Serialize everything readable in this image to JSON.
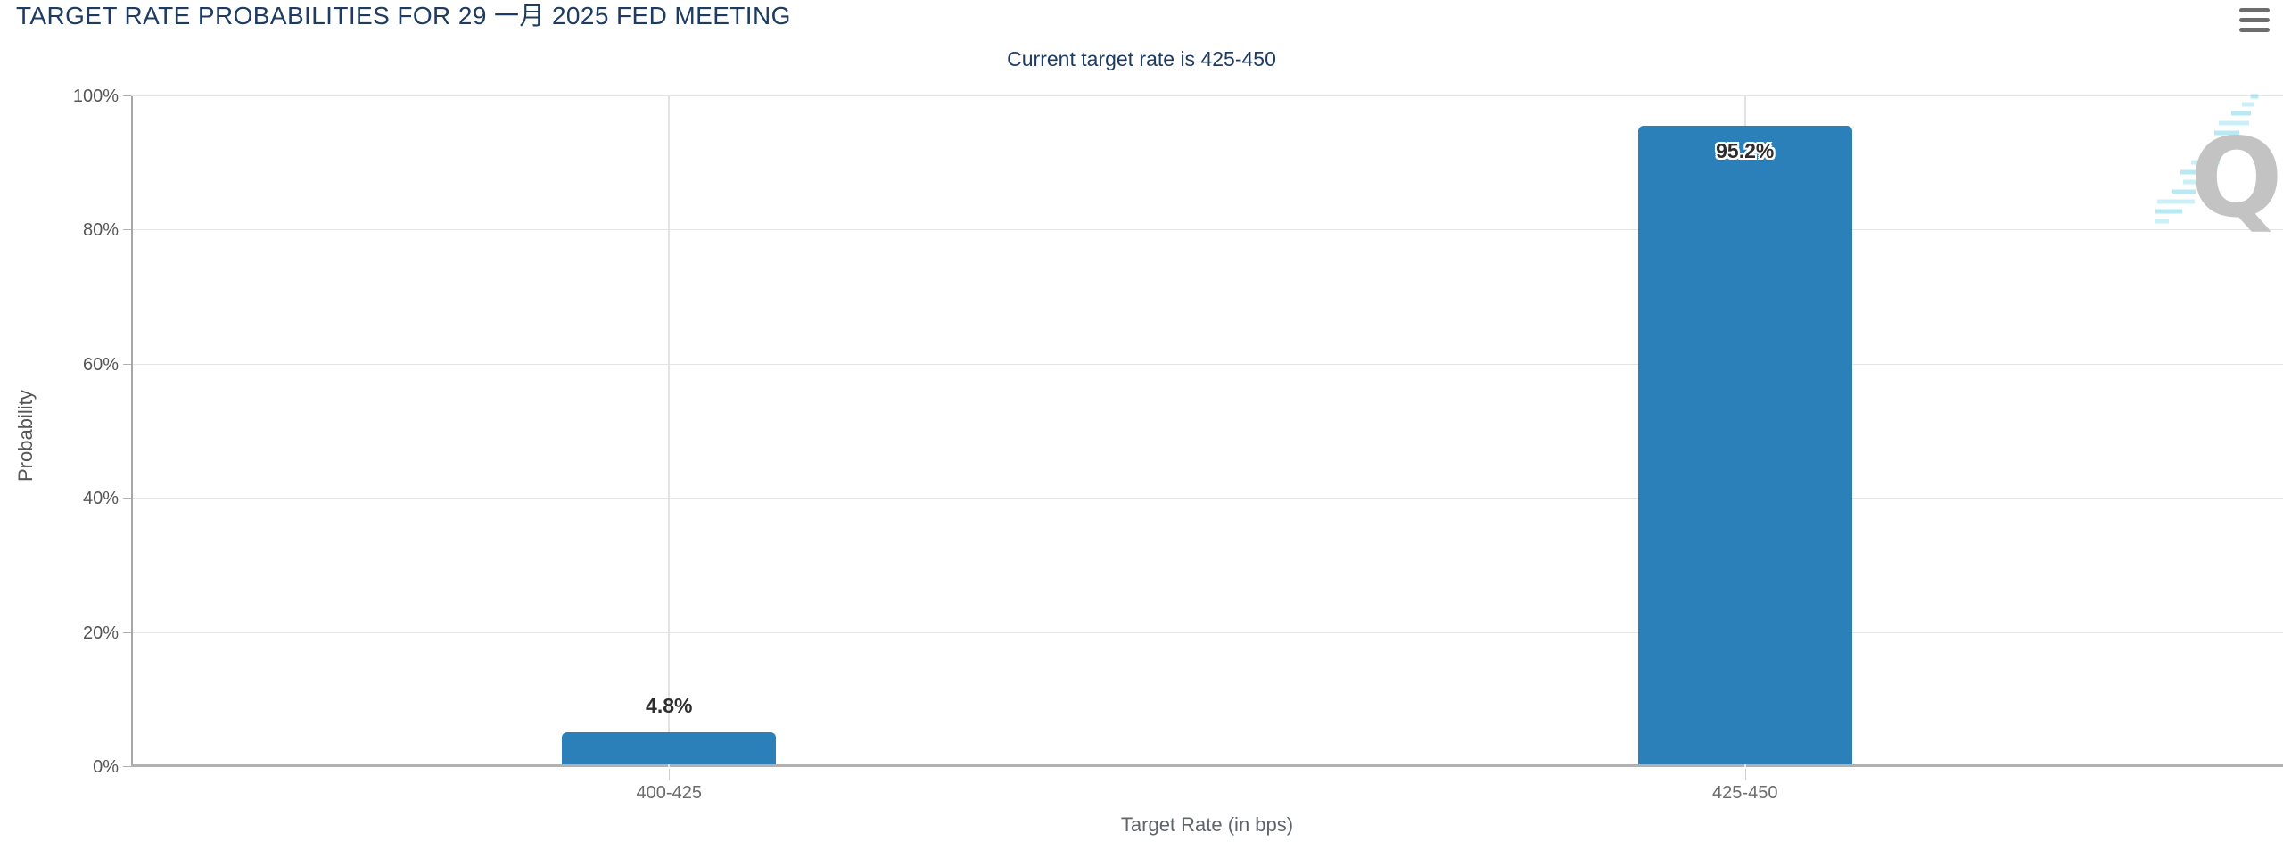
{
  "header": {
    "title": "TARGET RATE PROBABILITIES FOR 29 一月 2025 FED MEETING"
  },
  "chart_data": {
    "type": "bar",
    "title": "TARGET RATE PROBABILITIES FOR 29 一月 2025 FED MEETING",
    "subtitle": "Current target rate is 425-450",
    "categories": [
      "400-425",
      "425-450"
    ],
    "values": [
      4.8,
      95.2
    ],
    "value_labels": [
      "4.8%",
      "95.2%"
    ],
    "xlabel": "Target Rate (in bps)",
    "ylabel": "Probability",
    "ylim": [
      0,
      100
    ],
    "yticks": [
      0,
      20,
      40,
      60,
      80,
      100
    ],
    "ytick_labels": [
      "0%",
      "20%",
      "40%",
      "60%",
      "80%",
      "100%"
    ],
    "grid": true,
    "legend": "none",
    "bar_color": "#2b80b9",
    "watermark_letter": "Q"
  },
  "icons": {
    "menu": "hamburger-icon",
    "watermark": "quikstrike-q-logo"
  },
  "colors": {
    "title_text": "#1e3c61",
    "bar": "#2b80b9",
    "watermark_q": "#c3c3c3",
    "watermark_dash": "#9fe2ef"
  }
}
